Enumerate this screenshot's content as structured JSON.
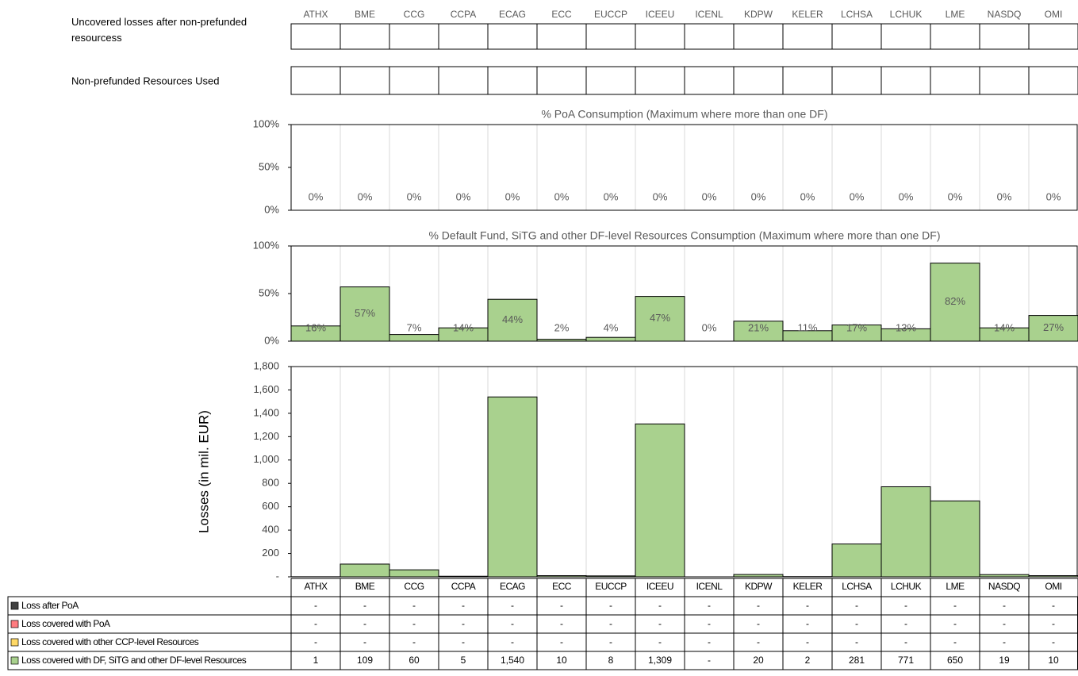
{
  "top_table": {
    "columns": [
      "ATHX",
      "BME",
      "CCG",
      "CCPA",
      "ECAG",
      "ECC",
      "EUCCP",
      "ICEEU",
      "ICENL",
      "KDPW",
      "KELER",
      "LCHSA",
      "LCHUK",
      "LME",
      "NASDQ",
      "OMI"
    ],
    "rows": [
      "Uncovered losses after non-prefunded resourcess",
      "Non-prefunded Resources Used"
    ]
  },
  "chart_data": [
    {
      "type": "bar",
      "title": "% PoA Consumption (Maximum where more than one DF)",
      "values": [
        0,
        0,
        0,
        0,
        0,
        0,
        0,
        0,
        0,
        0,
        0,
        0,
        0,
        0,
        0,
        0
      ],
      "value_labels": [
        "0%",
        "0%",
        "0%",
        "0%",
        "0%",
        "0%",
        "0%",
        "0%",
        "0%",
        "0%",
        "0%",
        "0%",
        "0%",
        "0%",
        "0%",
        "0%"
      ],
      "color": "#a9d18e",
      "ylim": [
        0,
        100
      ],
      "yticks": [
        {
          "value": 0,
          "label": "0%"
        },
        {
          "value": 50,
          "label": "50%"
        },
        {
          "value": 100,
          "label": "100%"
        }
      ]
    },
    {
      "type": "bar",
      "title": "% Default Fund, SiTG and other DF-level Resources Consumption (Maximum where more than one DF)",
      "values": [
        16,
        57,
        7,
        14,
        44,
        2,
        4,
        47,
        0,
        21,
        11,
        17,
        13,
        82,
        14,
        27
      ],
      "value_labels": [
        "16%",
        "57%",
        "7%",
        "14%",
        "44%",
        "2%",
        "4%",
        "47%",
        "0%",
        "21%",
        "11%",
        "17%",
        "13%",
        "82%",
        "14%",
        "27%"
      ],
      "color": "#a9d18e",
      "ylim": [
        0,
        100
      ],
      "yticks": [
        {
          "value": 0,
          "label": "0%"
        },
        {
          "value": 50,
          "label": "50%"
        },
        {
          "value": 100,
          "label": "100%"
        }
      ]
    },
    {
      "type": "stacked_bar",
      "ylabel": "Losses (in mil. EUR)",
      "categories": [
        "ATHX",
        "BME",
        "CCG",
        "CCPA",
        "ECAG",
        "ECC",
        "EUCCP",
        "ICEEU",
        "ICENL",
        "KDPW",
        "KELER",
        "LCHSA",
        "LCHUK",
        "LME",
        "NASDQ",
        "OMI"
      ],
      "series": [
        {
          "name": "Loss after PoA",
          "color": "#404040",
          "values": [
            0,
            0,
            0,
            0,
            0,
            0,
            0,
            0,
            0,
            0,
            0,
            0,
            0,
            0,
            0,
            0
          ],
          "value_labels": [
            "-",
            "-",
            "-",
            "-",
            "-",
            "-",
            "-",
            "-",
            "-",
            "-",
            "-",
            "-",
            "-",
            "-",
            "-",
            "-"
          ]
        },
        {
          "name": "Loss covered with PoA",
          "color": "#ff7c80",
          "values": [
            0,
            0,
            0,
            0,
            0,
            0,
            0,
            0,
            0,
            0,
            0,
            0,
            0,
            0,
            0,
            0
          ],
          "value_labels": [
            "-",
            "-",
            "-",
            "-",
            "-",
            "-",
            "-",
            "-",
            "-",
            "-",
            "-",
            "-",
            "-",
            "-",
            "-",
            "-"
          ]
        },
        {
          "name": "Loss covered with other CCP-level Resources",
          "color": "#ffd966",
          "values": [
            0,
            0,
            0,
            0,
            0,
            0,
            0,
            0,
            0,
            0,
            0,
            0,
            0,
            0,
            0,
            0
          ],
          "value_labels": [
            "-",
            "-",
            "-",
            "-",
            "-",
            "-",
            "-",
            "-",
            "-",
            "-",
            "-",
            "-",
            "-",
            "-",
            "-",
            "-"
          ]
        },
        {
          "name": "Loss covered with DF, SiTG and other DF-level Resources",
          "color": "#a9d18e",
          "values": [
            1,
            109,
            60,
            5,
            1540,
            10,
            8,
            1309,
            0,
            20,
            2,
            281,
            771,
            650,
            19,
            10
          ],
          "value_labels": [
            "1",
            "109",
            "60",
            "5",
            "1,540",
            "10",
            "8",
            "1,309",
            "-",
            "20",
            "2",
            "281",
            "771",
            "650",
            "19",
            "10"
          ]
        }
      ],
      "ylim": [
        0,
        1800
      ],
      "yticks": [
        {
          "value": 0,
          "label": "-"
        },
        200,
        400,
        600,
        800,
        {
          "value": 1000,
          "label": "1,000"
        },
        {
          "value": 1200,
          "label": "1,200"
        },
        {
          "value": 1400,
          "label": "1,400"
        },
        {
          "value": 1600,
          "label": "1,600"
        },
        {
          "value": 1800,
          "label": "1,800"
        }
      ]
    }
  ]
}
